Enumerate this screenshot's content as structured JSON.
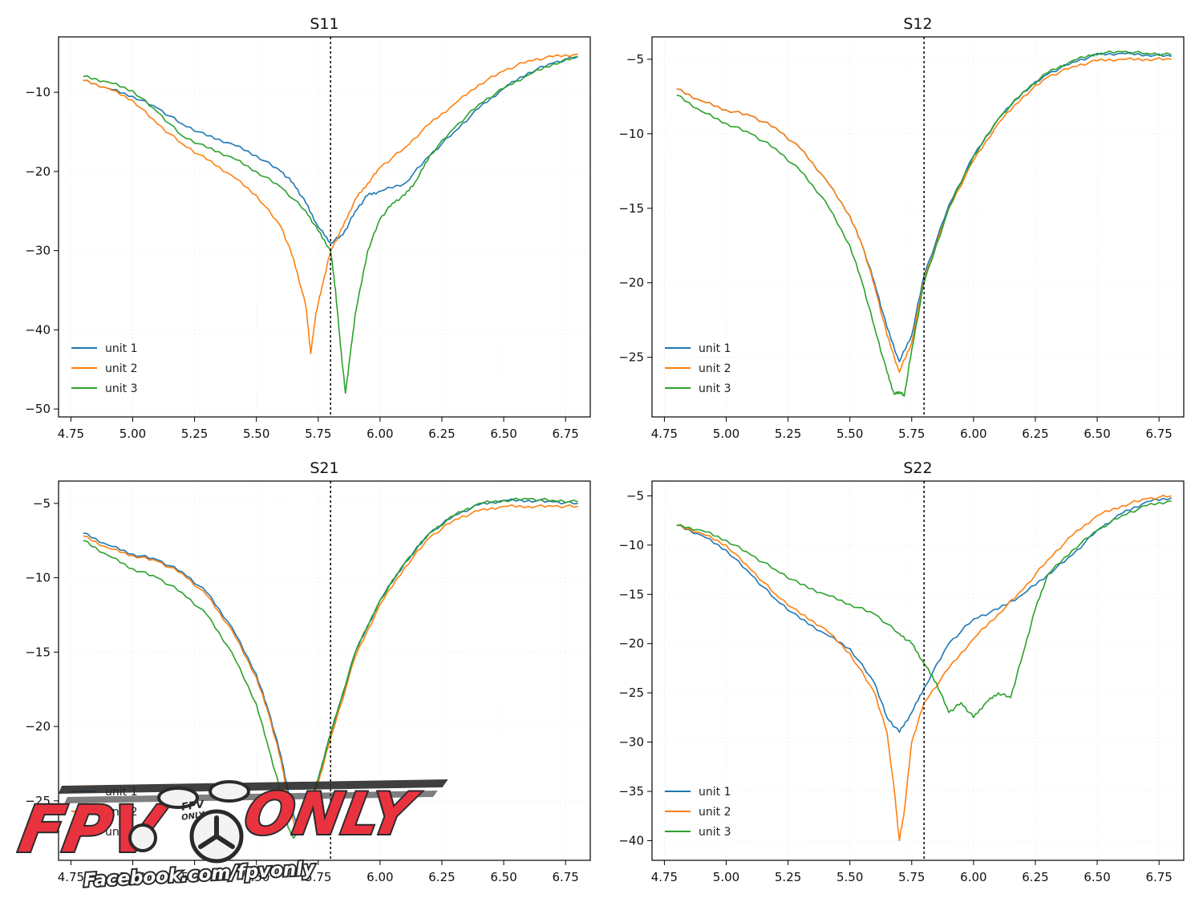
{
  "colors": {
    "unit1": "#1f77b4",
    "unit2": "#ff7f0e",
    "unit3": "#2ca02c",
    "marker": "#000000",
    "watermark_red": "#e8333f",
    "watermark_dark": "#2a2a2a"
  },
  "chart_data": [
    {
      "type": "line",
      "title": "S11",
      "xlabel": "",
      "ylabel": "",
      "xlim": [
        4.7,
        6.85
      ],
      "ylim": [
        -51,
        -3
      ],
      "xticks": [
        4.75,
        5.0,
        5.25,
        5.5,
        5.75,
        6.0,
        6.25,
        6.5,
        6.75
      ],
      "xtick_labels": [
        "4.75",
        "5.00",
        "5.25",
        "5.50",
        "5.75",
        "6.00",
        "6.25",
        "6.50",
        "6.75"
      ],
      "yticks": [
        -10,
        -20,
        -30,
        -40,
        -50
      ],
      "ytick_labels": [
        "−10",
        "−20",
        "−30",
        "−40",
        "−50"
      ],
      "vline_x": 5.8,
      "legend_position": "lower-left",
      "legend": [
        "unit 1",
        "unit 2",
        "unit 3"
      ],
      "series": [
        {
          "name": "unit 1",
          "x": [
            4.8,
            4.9,
            5.0,
            5.1,
            5.2,
            5.3,
            5.4,
            5.5,
            5.6,
            5.65,
            5.7,
            5.75,
            5.8,
            5.85,
            5.9,
            5.95,
            6.0,
            6.1,
            6.2,
            6.3,
            6.4,
            6.5,
            6.6,
            6.7,
            6.8
          ],
          "y": [
            -8.5,
            -9.5,
            -10.5,
            -12,
            -14,
            -15.5,
            -16.5,
            -18,
            -20,
            -21.5,
            -24,
            -27,
            -29,
            -28,
            -25,
            -23,
            -22.5,
            -21.5,
            -18,
            -15,
            -12,
            -9.5,
            -7.5,
            -6.3,
            -5.5
          ]
        },
        {
          "name": "unit 2",
          "x": [
            4.8,
            4.9,
            5.0,
            5.1,
            5.2,
            5.3,
            5.4,
            5.5,
            5.6,
            5.65,
            5.7,
            5.72,
            5.74,
            5.77,
            5.8,
            5.85,
            5.9,
            5.95,
            6.0,
            6.1,
            6.2,
            6.3,
            6.4,
            6.5,
            6.6,
            6.7,
            6.8
          ],
          "y": [
            -8.5,
            -9.5,
            -11,
            -14,
            -16.5,
            -18.5,
            -20.5,
            -23,
            -27,
            -31,
            -37,
            -43,
            -38,
            -34,
            -30,
            -27,
            -23.5,
            -21.5,
            -19.5,
            -17,
            -14,
            -11.5,
            -9,
            -7.3,
            -6,
            -5.5,
            -5.2
          ]
        },
        {
          "name": "unit 3",
          "x": [
            4.8,
            4.9,
            5.0,
            5.1,
            5.2,
            5.3,
            5.4,
            5.5,
            5.6,
            5.7,
            5.75,
            5.8,
            5.82,
            5.84,
            5.86,
            5.88,
            5.9,
            5.95,
            6.0,
            6.05,
            6.1,
            6.15,
            6.2,
            6.3,
            6.4,
            6.5,
            6.6,
            6.7,
            6.8
          ],
          "y": [
            -8,
            -8.7,
            -9.8,
            -12.5,
            -15.5,
            -17,
            -18.2,
            -20,
            -22,
            -25,
            -27.5,
            -30,
            -35,
            -42,
            -48,
            -43,
            -38,
            -30,
            -26,
            -24,
            -23,
            -21,
            -18,
            -14.5,
            -11.5,
            -9.5,
            -7.8,
            -6.4,
            -5.5
          ]
        }
      ]
    },
    {
      "type": "line",
      "title": "S12",
      "xlabel": "",
      "ylabel": "",
      "xlim": [
        4.7,
        6.85
      ],
      "ylim": [
        -29,
        -3.5
      ],
      "xticks": [
        4.75,
        5.0,
        5.25,
        5.5,
        5.75,
        6.0,
        6.25,
        6.5,
        6.75
      ],
      "xtick_labels": [
        "4.75",
        "5.00",
        "5.25",
        "5.50",
        "5.75",
        "6.00",
        "6.25",
        "6.50",
        "6.75"
      ],
      "yticks": [
        -5,
        -10,
        -15,
        -20,
        -25
      ],
      "ytick_labels": [
        "−5",
        "−10",
        "−15",
        "−20",
        "−25"
      ],
      "vline_x": 5.8,
      "legend_position": "lower-left",
      "legend": [
        "unit 1",
        "unit 2",
        "unit 3"
      ],
      "series": [
        {
          "name": "unit 1",
          "x": [
            4.8,
            4.9,
            5.0,
            5.1,
            5.2,
            5.3,
            5.4,
            5.5,
            5.55,
            5.6,
            5.65,
            5.7,
            5.75,
            5.8,
            5.9,
            6.0,
            6.1,
            6.2,
            6.3,
            6.4,
            6.5,
            6.6,
            6.7,
            6.8
          ],
          "y": [
            -7,
            -7.8,
            -8.4,
            -8.8,
            -9.6,
            -11,
            -13,
            -15.5,
            -17.5,
            -20,
            -23,
            -25.3,
            -23.5,
            -19.5,
            -14.8,
            -11.5,
            -9,
            -7.2,
            -6,
            -5.2,
            -4.7,
            -4.6,
            -4.7,
            -4.8
          ]
        },
        {
          "name": "unit 2",
          "x": [
            4.8,
            4.9,
            5.0,
            5.1,
            5.2,
            5.3,
            5.4,
            5.5,
            5.55,
            5.6,
            5.65,
            5.7,
            5.75,
            5.8,
            5.9,
            6.0,
            6.1,
            6.2,
            6.3,
            6.4,
            6.5,
            6.6,
            6.7,
            6.8
          ],
          "y": [
            -7,
            -7.8,
            -8.4,
            -8.8,
            -9.6,
            -11,
            -13,
            -15.5,
            -17.5,
            -20.2,
            -23.5,
            -26,
            -24,
            -19.8,
            -15,
            -11.8,
            -9.3,
            -7.5,
            -6.2,
            -5.5,
            -5.1,
            -5,
            -5,
            -5
          ]
        },
        {
          "name": "unit 3",
          "x": [
            4.8,
            4.9,
            5.0,
            5.1,
            5.2,
            5.3,
            5.4,
            5.5,
            5.55,
            5.6,
            5.65,
            5.68,
            5.7,
            5.72,
            5.75,
            5.8,
            5.9,
            6.0,
            6.1,
            6.2,
            6.3,
            6.4,
            6.5,
            6.6,
            6.7,
            6.8
          ],
          "y": [
            -7.4,
            -8.5,
            -9.3,
            -10,
            -11,
            -12.5,
            -14.5,
            -17.5,
            -20,
            -23,
            -26,
            -27.5,
            -27.3,
            -27.6,
            -24.5,
            -20,
            -15,
            -11.5,
            -9,
            -7.2,
            -5.9,
            -5.1,
            -4.6,
            -4.5,
            -4.6,
            -4.7
          ]
        }
      ]
    },
    {
      "type": "line",
      "title": "S21",
      "xlabel": "",
      "ylabel": "",
      "xlim": [
        4.7,
        6.85
      ],
      "ylim": [
        -29,
        -3.5
      ],
      "xticks": [
        4.75,
        5.0,
        5.25,
        5.5,
        5.75,
        6.0,
        6.25,
        6.5,
        6.75
      ],
      "xtick_labels": [
        "4.75",
        "5.00",
        "5.25",
        "5.50",
        "5.75",
        "6.00",
        "6.25",
        "6.50",
        "6.75"
      ],
      "yticks": [
        -5,
        -10,
        -15,
        -20,
        -25
      ],
      "ytick_labels": [
        "−5",
        "−10",
        "−15",
        "−20",
        "−25"
      ],
      "vline_x": 5.8,
      "legend_position": "lower-left",
      "legend": [
        "unit 1",
        "unit 2",
        "unit 3"
      ],
      "series": [
        {
          "name": "unit 1",
          "x": [
            4.8,
            4.9,
            5.0,
            5.1,
            5.2,
            5.3,
            5.4,
            5.5,
            5.55,
            5.6,
            5.63,
            5.66,
            5.7,
            5.75,
            5.8,
            5.9,
            6.0,
            6.1,
            6.2,
            6.3,
            6.4,
            6.5,
            6.6,
            6.7,
            6.8
          ],
          "y": [
            -7,
            -7.8,
            -8.4,
            -8.8,
            -9.6,
            -11,
            -13.3,
            -16.5,
            -19,
            -22,
            -24.5,
            -26.5,
            -26,
            -23.5,
            -20.5,
            -15,
            -11.5,
            -9,
            -7,
            -5.8,
            -5.1,
            -4.8,
            -4.8,
            -4.9,
            -5
          ]
        },
        {
          "name": "unit 2",
          "x": [
            4.8,
            4.9,
            5.0,
            5.1,
            5.2,
            5.3,
            5.4,
            5.5,
            5.55,
            5.6,
            5.63,
            5.66,
            5.7,
            5.75,
            5.8,
            5.9,
            6.0,
            6.1,
            6.2,
            6.3,
            6.4,
            6.5,
            6.6,
            6.7,
            6.8
          ],
          "y": [
            -7.2,
            -8,
            -8.5,
            -8.9,
            -9.7,
            -11.2,
            -13.5,
            -16.7,
            -19.2,
            -22.3,
            -25,
            -27,
            -26.2,
            -23.8,
            -20.8,
            -15.3,
            -11.8,
            -9.3,
            -7.3,
            -6.1,
            -5.5,
            -5.2,
            -5.2,
            -5.2,
            -5.2
          ]
        },
        {
          "name": "unit 3",
          "x": [
            4.8,
            4.9,
            5.0,
            5.1,
            5.2,
            5.3,
            5.4,
            5.5,
            5.55,
            5.6,
            5.62,
            5.65,
            5.68,
            5.7,
            5.75,
            5.8,
            5.9,
            6.0,
            6.1,
            6.2,
            6.3,
            6.4,
            6.5,
            6.6,
            6.7,
            6.8
          ],
          "y": [
            -7.5,
            -8.5,
            -9.4,
            -10,
            -11,
            -12.5,
            -15,
            -18.5,
            -21.5,
            -24.5,
            -26.5,
            -27.5,
            -27,
            -26,
            -23.5,
            -20.5,
            -15,
            -11.5,
            -9,
            -7,
            -5.8,
            -5,
            -4.8,
            -4.7,
            -4.8,
            -4.9
          ]
        }
      ]
    },
    {
      "type": "line",
      "title": "S22",
      "xlabel": "",
      "ylabel": "",
      "xlim": [
        4.7,
        6.85
      ],
      "ylim": [
        -42,
        -3.5
      ],
      "xticks": [
        4.75,
        5.0,
        5.25,
        5.5,
        5.75,
        6.0,
        6.25,
        6.5,
        6.75
      ],
      "xtick_labels": [
        "4.75",
        "5.00",
        "5.25",
        "5.50",
        "5.75",
        "6.00",
        "6.25",
        "6.50",
        "6.75"
      ],
      "yticks": [
        -5,
        -10,
        -15,
        -20,
        -25,
        -30,
        -35,
        -40
      ],
      "ytick_labels": [
        "−5",
        "−10",
        "−15",
        "−20",
        "−25",
        "−30",
        "−35",
        "−40"
      ],
      "vline_x": 5.8,
      "legend_position": "lower-left",
      "legend": [
        "unit 1",
        "unit 2",
        "unit 3"
      ],
      "series": [
        {
          "name": "unit 1",
          "x": [
            4.8,
            4.9,
            5.0,
            5.1,
            5.2,
            5.3,
            5.4,
            5.5,
            5.6,
            5.65,
            5.7,
            5.75,
            5.8,
            5.9,
            6.0,
            6.1,
            6.2,
            6.3,
            6.4,
            6.5,
            6.6,
            6.7,
            6.8
          ],
          "y": [
            -8,
            -9,
            -10.5,
            -13,
            -15.5,
            -17.5,
            -19,
            -20.5,
            -24,
            -27.5,
            -29,
            -27,
            -24.5,
            -20,
            -17.5,
            -16.5,
            -15,
            -13,
            -11,
            -8.5,
            -6.8,
            -5.6,
            -5.2
          ]
        },
        {
          "name": "unit 2",
          "x": [
            4.8,
            4.9,
            5.0,
            5.1,
            5.2,
            5.3,
            5.4,
            5.5,
            5.6,
            5.65,
            5.68,
            5.7,
            5.72,
            5.75,
            5.8,
            5.9,
            6.0,
            6.1,
            6.2,
            6.3,
            6.4,
            6.5,
            6.6,
            6.7,
            6.8
          ],
          "y": [
            -8,
            -8.8,
            -10,
            -12.5,
            -15,
            -17,
            -18.5,
            -21,
            -25,
            -29,
            -35,
            -40,
            -37,
            -30,
            -26,
            -22.5,
            -19.5,
            -17,
            -14.5,
            -11.5,
            -9,
            -7,
            -6,
            -5.3,
            -5
          ]
        },
        {
          "name": "unit 3",
          "x": [
            4.8,
            4.9,
            5.0,
            5.1,
            5.2,
            5.3,
            5.4,
            5.5,
            5.6,
            5.7,
            5.75,
            5.8,
            5.85,
            5.9,
            5.95,
            6.0,
            6.05,
            6.1,
            6.15,
            6.2,
            6.25,
            6.3,
            6.4,
            6.5,
            6.6,
            6.7,
            6.8
          ],
          "y": [
            -8,
            -8.5,
            -9.5,
            -11,
            -12.5,
            -14,
            -15,
            -16,
            -17,
            -19,
            -20,
            -22,
            -24,
            -27,
            -26,
            -27.5,
            -26,
            -25,
            -25.5,
            -21,
            -16.5,
            -13,
            -10.5,
            -8.5,
            -7,
            -6,
            -5.5
          ]
        }
      ]
    }
  ],
  "watermark": {
    "brand_left": "FPV",
    "brand_right": "ONLY",
    "badge_top": "FPV",
    "badge_bottom": "ONLY",
    "url": "Facebook.com/fpvonly"
  }
}
